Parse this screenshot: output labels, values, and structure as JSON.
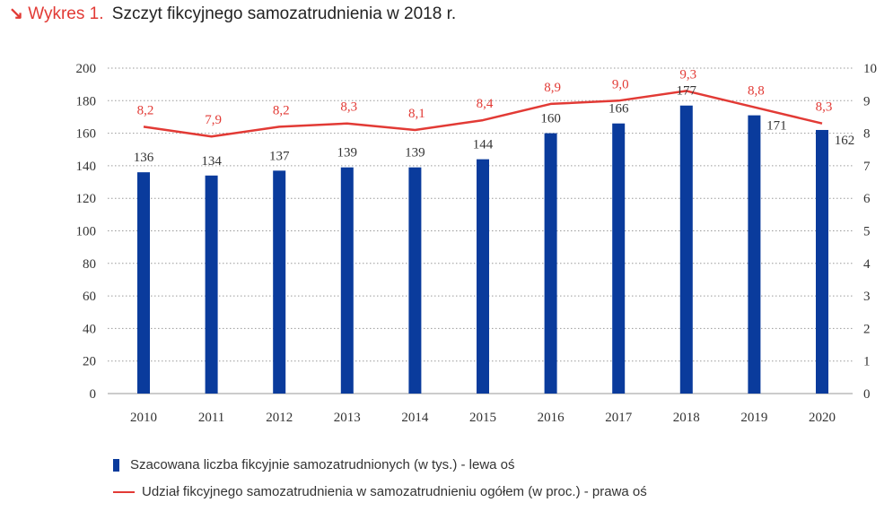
{
  "header": {
    "arrow": "↘",
    "label": "Wykres 1.",
    "title": "Szczyt fikcyjnego samozatrudnienia w 2018 r."
  },
  "chart_data": {
    "type": "bar",
    "categories": [
      "2010",
      "2011",
      "2012",
      "2013",
      "2014",
      "2015",
      "2016",
      "2017",
      "2018",
      "2019",
      "2020"
    ],
    "series": [
      {
        "name": "Szacowana liczba fikcyjnie samozatrudnionych (w tys.) - lewa oś",
        "kind": "bar",
        "axis": "left",
        "color": "#0a3b9c",
        "values": [
          136,
          134,
          137,
          139,
          139,
          144,
          160,
          166,
          177,
          171,
          162
        ],
        "labels": [
          "136",
          "134",
          "137",
          "139",
          "139",
          "144",
          "160",
          "166",
          "177",
          "171",
          "162"
        ]
      },
      {
        "name": "Udział fikcyjnego samozatrudnienia w samozatrudnieniu ogółem (w proc.) - prawa oś",
        "kind": "line",
        "axis": "right",
        "color": "#e23a35",
        "values": [
          8.2,
          7.9,
          8.2,
          8.3,
          8.1,
          8.4,
          8.9,
          9.0,
          9.3,
          8.8,
          8.3
        ],
        "labels": [
          "8,2",
          "7,9",
          "8,2",
          "8,3",
          "8,1",
          "8,4",
          "8,9",
          "9,0",
          "9,3",
          "8,8",
          "8,3"
        ]
      }
    ],
    "y_left": {
      "min": 0,
      "max": 200,
      "ticks": [
        "0",
        "20",
        "40",
        "60",
        "80",
        "100",
        "120",
        "140",
        "160",
        "180",
        "200"
      ]
    },
    "y_right": {
      "min": 0,
      "max": 10,
      "ticks": [
        "0",
        "1",
        "2",
        "3",
        "4",
        "5",
        "6",
        "7",
        "8",
        "9",
        "10"
      ]
    },
    "gridlines": "dotted",
    "legend_position": "bottom-left"
  }
}
